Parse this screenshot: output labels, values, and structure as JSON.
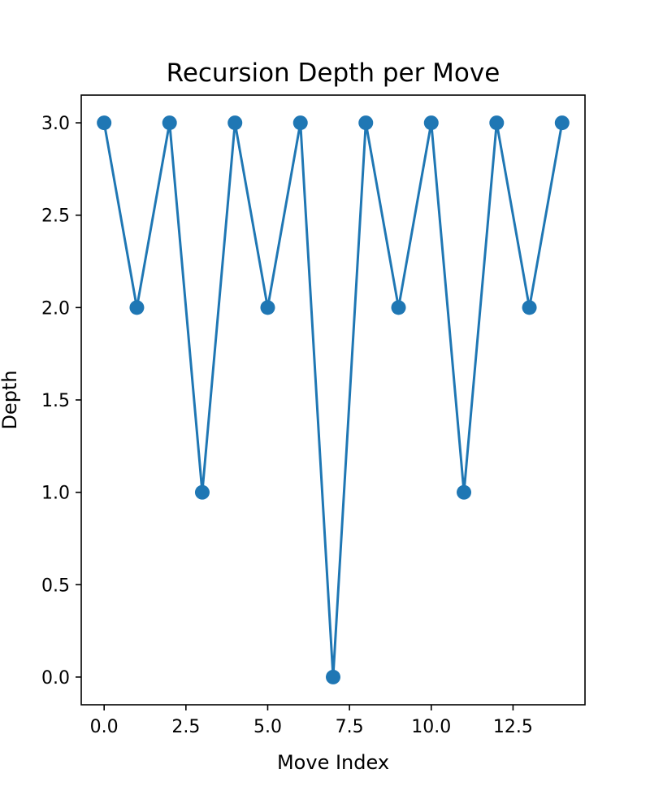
{
  "chart_data": {
    "type": "line",
    "title": "Recursion Depth per Move",
    "xlabel": "Move Index",
    "ylabel": "Depth",
    "x": [
      0,
      1,
      2,
      3,
      4,
      5,
      6,
      7,
      8,
      9,
      10,
      11,
      12,
      13,
      14
    ],
    "series": [
      {
        "values": [
          3,
          2,
          3,
          1,
          3,
          2,
          3,
          0,
          3,
          2,
          3,
          1,
          3,
          2,
          3
        ],
        "color": "#1f77b4",
        "marker": "circle"
      }
    ],
    "xlim": [
      -0.7,
      14.7
    ],
    "ylim": [
      -0.15,
      3.15
    ],
    "xticks": [
      0.0,
      2.5,
      5.0,
      7.5,
      10.0,
      12.5
    ],
    "xtick_labels": [
      "0.0",
      "2.5",
      "5.0",
      "7.5",
      "10.0",
      "12.5"
    ],
    "yticks": [
      0.0,
      0.5,
      1.0,
      1.5,
      2.0,
      2.5,
      3.0
    ],
    "ytick_labels": [
      "0.0",
      "0.5",
      "1.0",
      "1.5",
      "2.0",
      "2.5",
      "3.0"
    ],
    "grid": false,
    "legend": "none"
  }
}
